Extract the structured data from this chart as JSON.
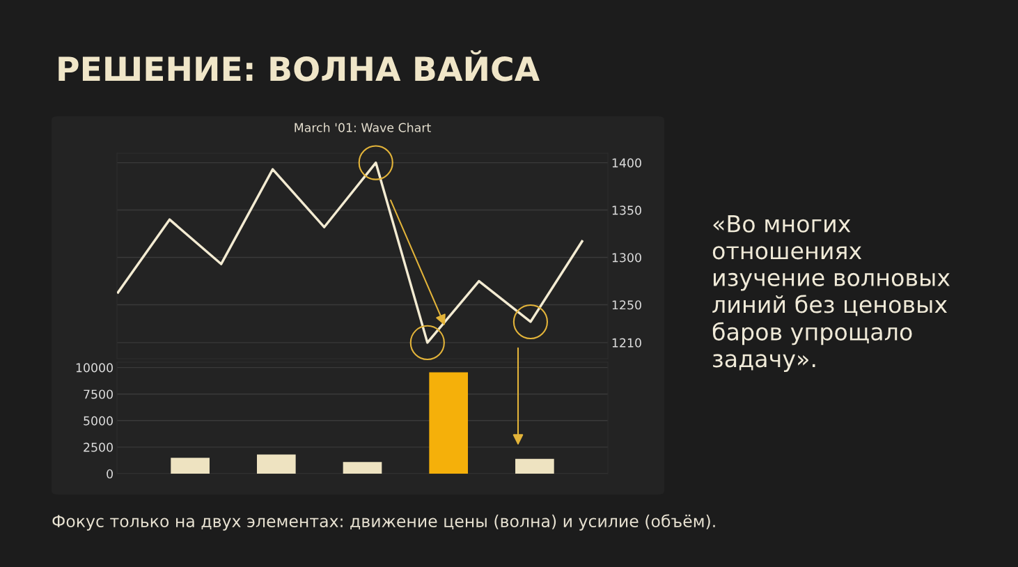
{
  "chart_data": [
    {
      "type": "line",
      "title": "РЕШЕНИЕ: ВОЛНА ВАЙСА",
      "subtitle": "March '01: Wave Chart",
      "annotations": [
        "«Во многих отношениях изучение волновых линий без ценовых баров упрощало задачу».",
        "Фокус только на двух элементах: движение цены (волна) и усилие (объём)."
      ],
      "categories": [
        null,
        null,
        null,
        null,
        null,
        null,
        null,
        null,
        null,
        null
      ],
      "ylim": [
        1193,
        1410
      ],
      "yticks": [
        1210,
        1250,
        1300,
        1350,
        1400
      ],
      "grid": "y",
      "marker": "none",
      "line_style": "solid",
      "series": [
        {
          "color": "#f3ebd2",
          "values": [
            1263,
            1340,
            1293,
            1393,
            1332,
            1400,
            1210,
            1275,
            1232,
            1317
          ]
        },
        {
          "type": "scatter",
          "color": "#e3b43a",
          "marker": "circle",
          "values": [
            null,
            null,
            null,
            null,
            null,
            1400,
            1210,
            null,
            1232,
            null
          ]
        }
      ]
    },
    {
      "type": "bar",
      "categories": [
        null,
        null,
        null,
        null,
        null
      ],
      "ylim": [
        0,
        10500
      ],
      "yticks": [
        0,
        2500,
        5000,
        7500,
        10000
      ],
      "grid": "y",
      "values": [
        1500,
        1800,
        1100,
        9550,
        1400
      ],
      "colors": [
        "#eee3c1",
        "#eee3c1",
        "#eee3c1",
        "#f5b00a",
        "#eee3c1"
      ]
    }
  ]
}
